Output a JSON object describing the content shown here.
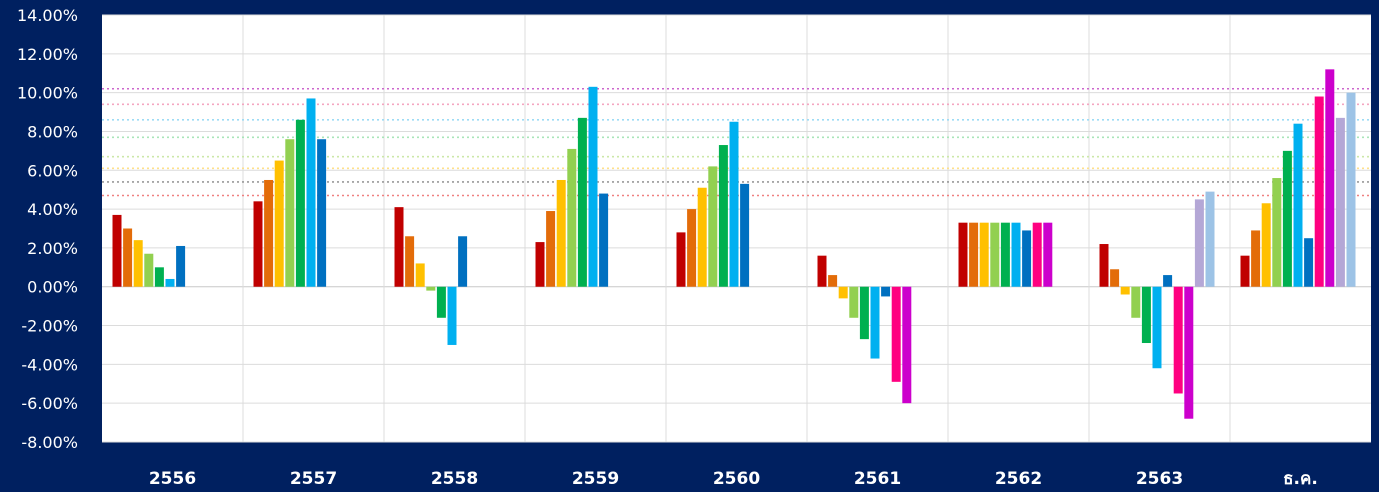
{
  "chart_data": {
    "type": "bar",
    "categories": [
      "2556",
      "2557",
      "2558",
      "2559",
      "2560",
      "2561",
      "2562",
      "2563",
      "ธ.ค."
    ],
    "y_tick_labels": [
      "14.00%",
      "12.00%",
      "10.00%",
      "8.00%",
      "6.00%",
      "4.00%",
      "2.00%",
      "0.00%",
      "-2.00%",
      "-4.00%",
      "-6.00%",
      "-8.00%"
    ],
    "ylim": [
      -8,
      14
    ],
    "y_unit": "%",
    "grid": true,
    "legend": "none",
    "series": [
      {
        "color": "#C00000",
        "values": [
          3.7,
          4.4,
          4.1,
          2.3,
          2.8,
          1.6,
          3.3,
          2.2,
          1.6
        ]
      },
      {
        "color": "#E36C09",
        "values": [
          3.0,
          5.5,
          2.6,
          3.9,
          4.0,
          0.6,
          3.3,
          0.9,
          2.9
        ]
      },
      {
        "color": "#FFC000",
        "values": [
          2.4,
          6.5,
          1.2,
          5.5,
          5.1,
          -0.6,
          3.3,
          -0.4,
          4.3
        ]
      },
      {
        "color": "#92D050",
        "values": [
          1.7,
          7.6,
          -0.2,
          7.1,
          6.2,
          -1.6,
          3.3,
          -1.6,
          5.6
        ]
      },
      {
        "color": "#00B050",
        "values": [
          1.0,
          8.6,
          -1.6,
          8.7,
          7.3,
          -2.7,
          3.3,
          -2.9,
          7.0
        ]
      },
      {
        "color": "#00B0F0",
        "values": [
          0.4,
          9.7,
          -3.0,
          10.3,
          8.5,
          -3.7,
          3.3,
          -4.2,
          8.4
        ]
      },
      {
        "color": "#0070C0",
        "values": [
          2.1,
          7.6,
          2.6,
          4.8,
          5.3,
          -0.5,
          2.9,
          0.6,
          2.5
        ]
      },
      {
        "color": "#FF0080",
        "values": [
          null,
          null,
          null,
          null,
          null,
          -4.9,
          3.3,
          -5.5,
          9.8
        ]
      },
      {
        "color": "#CC00CC",
        "values": [
          null,
          null,
          null,
          null,
          null,
          -6.0,
          3.3,
          -6.8,
          11.2
        ]
      },
      {
        "color": "#B4A7D6",
        "values": [
          null,
          null,
          null,
          null,
          null,
          null,
          null,
          4.5,
          8.7
        ]
      },
      {
        "color": "#9DC3E6",
        "values": [
          null,
          null,
          null,
          null,
          null,
          null,
          null,
          4.9,
          10.0
        ]
      }
    ],
    "reference_lines": [
      {
        "value": 10.2,
        "color": "#CC66CC"
      },
      {
        "value": 9.4,
        "color": "#F4A6C0"
      },
      {
        "value": 8.6,
        "color": "#9DDCF5"
      },
      {
        "value": 7.7,
        "color": "#A8E6B8"
      },
      {
        "value": 6.7,
        "color": "#CCE8A8"
      },
      {
        "value": 6.1,
        "color": "#FFE08A"
      },
      {
        "value": 5.4,
        "color": "#999999"
      },
      {
        "value": 4.7,
        "color": "#F08080"
      }
    ]
  }
}
